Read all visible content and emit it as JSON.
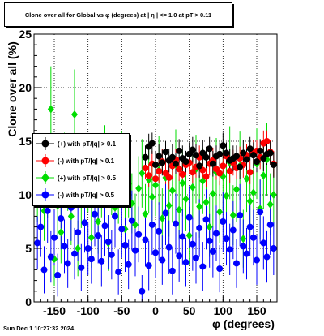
{
  "chart_data": {
    "type": "scatter",
    "title": "Clone  over all for Global vs φ (degrees) at |  η  | <= 1.0 at pT > 0.11",
    "xlabel": "φ (degrees)",
    "ylabel": "Clone  over all (%)",
    "xlim": [
      -180,
      180
    ],
    "ylim": [
      0,
      25
    ],
    "x_ticks": [
      "-150",
      "-100",
      "-50",
      "0",
      "50",
      "100",
      "150"
    ],
    "y_ticks": [
      "0",
      "5",
      "10",
      "15",
      "20",
      "25"
    ],
    "grid": true,
    "legend_placement": "left-middle",
    "series": [
      {
        "name": "(+) with pT/|q| > 0.1",
        "color": "#000000",
        "marker": "circle",
        "x": [
          -15,
          -10,
          -5,
          0,
          5,
          10,
          15,
          20,
          25,
          30,
          35,
          40,
          45,
          50,
          55,
          60,
          65,
          70,
          75,
          80,
          85,
          90,
          95,
          100,
          105,
          110,
          115,
          120,
          125,
          130,
          135,
          140,
          145,
          150,
          155,
          160,
          165,
          170,
          175
        ],
        "y": [
          13.5,
          14.5,
          14.8,
          12.8,
          13.6,
          13.0,
          14.0,
          13.2,
          13.5,
          12.9,
          14.1,
          13.4,
          13.1,
          13.8,
          14.2,
          13.7,
          12.7,
          13.9,
          13.5,
          14.3,
          12.9,
          13.6,
          13.8,
          14.6,
          13.9,
          13.2,
          13.4,
          13.6,
          12.6,
          13.9,
          13.3,
          14.3,
          13.7,
          13.1,
          14.1,
          13.4,
          13.8,
          13.9,
          12.8
        ],
        "err": [
          1.1,
          1.2,
          1.0,
          1.3,
          1.1,
          1.2,
          1.0,
          1.1,
          1.2,
          1.0,
          1.1,
          1.2,
          1.0,
          1.1,
          1.2,
          1.0,
          1.1,
          1.2,
          1.0,
          1.1,
          1.2,
          1.0,
          1.1,
          1.2,
          1.0,
          1.1,
          1.2,
          1.0,
          1.1,
          1.2,
          1.0,
          1.1,
          1.2,
          1.0,
          1.1,
          1.2,
          1.0,
          1.1,
          1.2
        ]
      },
      {
        "name": "(-) with pT/|q| > 0.1",
        "color": "#ff0000",
        "marker": "circle",
        "x": [
          -15,
          -10,
          -5,
          0,
          5,
          10,
          15,
          20,
          25,
          30,
          35,
          40,
          45,
          50,
          55,
          60,
          65,
          70,
          75,
          80,
          85,
          90,
          95,
          100,
          105,
          110,
          115,
          120,
          125,
          130,
          135,
          140,
          145,
          150,
          155,
          160,
          165,
          170,
          175
        ],
        "y": [
          12.5,
          11.8,
          12.9,
          11.5,
          12.2,
          13.1,
          12.0,
          11.6,
          12.7,
          13.3,
          12.4,
          11.9,
          12.8,
          13.0,
          12.1,
          12.6,
          13.5,
          12.3,
          11.7,
          12.9,
          13.2,
          12.4,
          12.0,
          12.7,
          13.6,
          12.2,
          13.0,
          12.5,
          13.4,
          12.8,
          13.7,
          12.1,
          13.9,
          14.1,
          13.5,
          14.8,
          15.0,
          14.0,
          12.9
        ],
        "err": [
          1.0,
          1.1,
          1.2,
          1.0,
          1.1,
          1.2,
          1.0,
          1.1,
          1.2,
          1.0,
          1.1,
          1.2,
          1.0,
          1.1,
          1.2,
          1.0,
          1.1,
          1.2,
          1.0,
          1.1,
          1.2,
          1.0,
          1.1,
          1.2,
          1.0,
          1.1,
          1.2,
          1.0,
          1.1,
          1.2,
          1.0,
          1.1,
          1.2,
          1.0,
          1.1,
          1.2,
          1.0,
          1.1,
          1.2
        ]
      },
      {
        "name": "(+) with pT/|q| > 0.5",
        "color": "#00dd00",
        "marker": "diamond",
        "x": [
          -175,
          -170,
          -165,
          -160,
          -155,
          -150,
          -145,
          -140,
          -135,
          -130,
          -125,
          -120,
          -115,
          -110,
          -105,
          -100,
          -95,
          -90,
          -85,
          -80,
          -75,
          -70,
          -65,
          -60,
          -55,
          -50,
          -45,
          -40,
          -35,
          -30,
          -25,
          -20,
          -15,
          -10,
          -5,
          0,
          5,
          10,
          15,
          20,
          25,
          30,
          35,
          40,
          45,
          50,
          55,
          60,
          65,
          70,
          75,
          80,
          85,
          90,
          95,
          100,
          105,
          110,
          115,
          120,
          125,
          130,
          135,
          140,
          145,
          150,
          155,
          160,
          165,
          170,
          175
        ],
        "y": [
          10.5,
          12.0,
          8.5,
          11.0,
          18.0,
          4.0,
          9.0,
          6.5,
          12.5,
          11.5,
          8.0,
          17.5,
          5.0,
          10.0,
          9.5,
          11.8,
          6.0,
          12.2,
          7.5,
          10.8,
          13.0,
          5.5,
          11.2,
          8.8,
          10.3,
          12.6,
          6.8,
          11.0,
          9.2,
          7.2,
          10.6,
          12.0,
          8.2,
          11.4,
          9.8,
          10.9,
          12.3,
          7.8,
          11.6,
          9.0,
          10.4,
          12.8,
          8.6,
          11.1,
          9.6,
          6.2,
          10.7,
          12.4,
          8.9,
          11.3,
          9.3,
          7.0,
          10.1,
          12.1,
          8.4,
          11.7,
          9.9,
          13.0,
          8.1,
          10.5,
          12.7,
          5.9,
          11.5,
          9.4,
          10.2,
          12.9,
          8.7,
          11.8,
          13.3,
          9.1,
          10.0
        ],
        "err": [
          3.0,
          3.5,
          2.8,
          3.2,
          4.0,
          2.5,
          3.1,
          2.9,
          3.3,
          3.0,
          2.7,
          4.2,
          2.6,
          3.1,
          2.9,
          3.4,
          2.8,
          3.2,
          3.0,
          2.9,
          3.5,
          2.6,
          3.1,
          2.9,
          3.0,
          3.3,
          2.7,
          3.1,
          2.8,
          2.9,
          3.0,
          3.2,
          2.8,
          3.1,
          3.0,
          2.9,
          3.2,
          2.8,
          3.1,
          2.9,
          3.0,
          3.3,
          2.8,
          3.1,
          3.0,
          2.7,
          3.0,
          3.2,
          2.9,
          3.1,
          3.0,
          2.8,
          3.0,
          3.2,
          2.9,
          3.1,
          3.0,
          3.4,
          2.8,
          3.0,
          3.2,
          2.7,
          3.1,
          2.9,
          3.0,
          3.3,
          2.8,
          3.1,
          3.4,
          2.9,
          3.0
        ]
      },
      {
        "name": "(-) with pT/|q| > 0.5",
        "color": "#0000ff",
        "marker": "circle",
        "x": [
          -175,
          -170,
          -165,
          -160,
          -155,
          -150,
          -145,
          -140,
          -135,
          -130,
          -125,
          -120,
          -115,
          -110,
          -105,
          -100,
          -95,
          -90,
          -85,
          -80,
          -75,
          -70,
          -65,
          -60,
          -55,
          -50,
          -45,
          -40,
          -35,
          -30,
          -25,
          -20,
          -15,
          -10,
          -5,
          0,
          5,
          10,
          15,
          20,
          25,
          30,
          35,
          40,
          45,
          50,
          55,
          60,
          65,
          70,
          75,
          80,
          85,
          90,
          95,
          100,
          105,
          110,
          115,
          120,
          125,
          130,
          135,
          140,
          145,
          150,
          155,
          160,
          165,
          170,
          175
        ],
        "y": [
          5.5,
          7.0,
          3.0,
          8.5,
          4.2,
          6.0,
          2.5,
          7.8,
          5.2,
          3.6,
          8.8,
          4.5,
          6.5,
          3.2,
          7.4,
          5.0,
          4.0,
          8.2,
          6.2,
          3.8,
          7.1,
          5.6,
          4.4,
          8.0,
          2.8,
          6.8,
          5.3,
          3.5,
          7.6,
          4.8,
          6.3,
          1.0,
          5.8,
          3.4,
          7.2,
          4.6,
          6.6,
          3.9,
          8.3,
          5.1,
          2.9,
          7.3,
          4.3,
          6.1,
          3.7,
          7.9,
          5.4,
          4.1,
          6.9,
          3.3,
          7.7,
          5.7,
          4.7,
          6.4,
          3.1,
          7.5,
          5.9,
          4.9,
          6.7,
          3.6,
          8.1,
          5.2,
          4.5,
          7.0,
          6.0,
          3.9,
          8.4,
          5.5,
          4.2,
          7.2,
          5.0
        ],
        "err": [
          2.5,
          2.8,
          2.2,
          3.0,
          2.4,
          2.6,
          2.0,
          2.9,
          2.5,
          2.3,
          3.1,
          2.4,
          2.7,
          2.2,
          2.8,
          2.5,
          2.3,
          3.0,
          2.6,
          2.4,
          2.8,
          2.5,
          2.3,
          2.9,
          2.1,
          2.7,
          2.5,
          2.3,
          2.8,
          2.4,
          2.6,
          1.5,
          2.5,
          2.3,
          2.8,
          2.4,
          2.7,
          2.3,
          3.0,
          2.5,
          2.2,
          2.8,
          2.4,
          2.6,
          2.3,
          2.9,
          2.5,
          2.4,
          2.7,
          2.3,
          2.8,
          2.5,
          2.4,
          2.6,
          2.2,
          2.8,
          2.5,
          2.4,
          2.7,
          2.3,
          2.9,
          2.5,
          2.4,
          2.7,
          2.6,
          2.3,
          3.0,
          2.5,
          2.4,
          2.8,
          2.5
        ]
      }
    ]
  },
  "footer": {
    "timestamp": "Sun Dec  1 10:27:32 2024"
  }
}
